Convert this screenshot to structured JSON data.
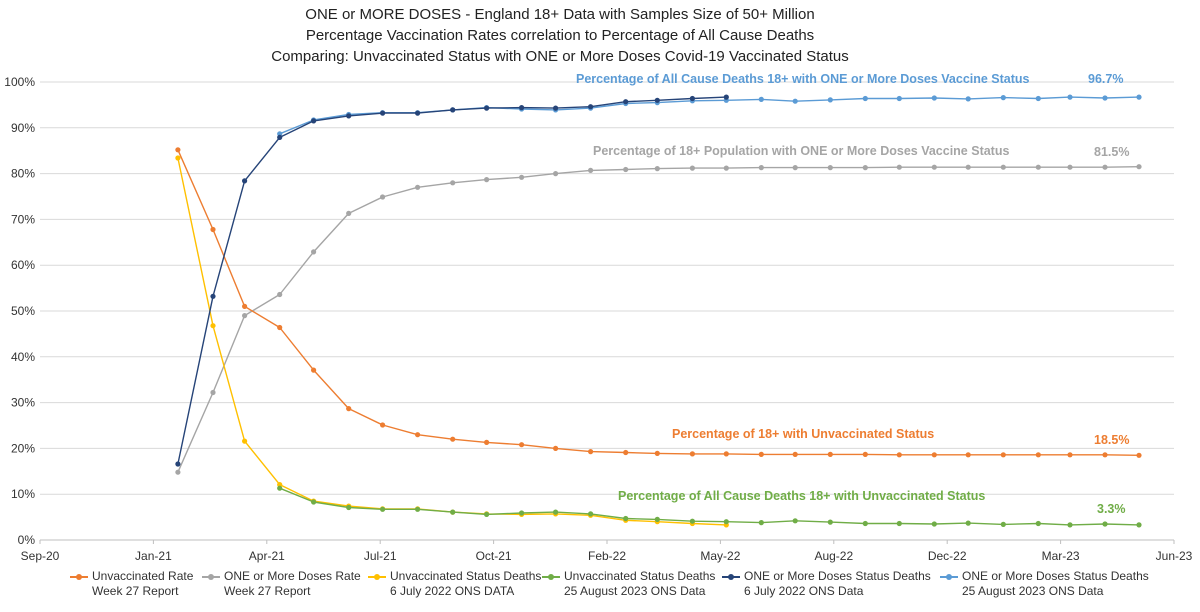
{
  "title": {
    "line1": "ONE or MORE DOSES - England 18+ Data with Samples Size of 50+ Million",
    "line2": "Percentage Vaccination Rates correlation to Percentage of All Cause Deaths",
    "line3": "Comparing: Unvaccinated Status with ONE or More Doses Covid-19 Vaccinated Status"
  },
  "chart_data": {
    "type": "line",
    "x_axis_ticks": [
      "Sep-20",
      "Jan-21",
      "Apr-21",
      "Jul-21",
      "Oct-21",
      "Feb-22",
      "May-22",
      "Aug-22",
      "Dec-22",
      "Mar-23",
      "Jun-23"
    ],
    "y_axis_ticks": [
      "0%",
      "10%",
      "20%",
      "30%",
      "40%",
      "50%",
      "60%",
      "70%",
      "80%",
      "90%",
      "100%"
    ],
    "ylim": [
      0,
      100
    ],
    "grid": "horizontal",
    "legend_position": "bottom",
    "series": [
      {
        "name": "Unvaccinated Rate",
        "name2": "Week 27 Report",
        "color": "#ED7D31",
        "x": [
          "2021-01-01",
          "2021-02-01",
          "2021-03-01",
          "2021-04-01",
          "2021-05-01",
          "2021-06-01",
          "2021-07-01",
          "2021-08-01",
          "2021-09-01",
          "2021-10-01",
          "2021-11-01",
          "2021-12-01",
          "2022-01-01",
          "2022-02-01",
          "2022-03-01",
          "2022-04-01",
          "2022-05-01",
          "2022-06-01",
          "2022-07-01",
          "2022-08-01",
          "2022-09-01",
          "2022-10-01",
          "2022-11-01",
          "2022-12-01",
          "2023-01-01",
          "2023-02-01",
          "2023-03-01",
          "2023-04-01",
          "2023-05-01"
        ],
        "values": [
          85.2,
          67.8,
          51.0,
          46.4,
          37.1,
          28.7,
          25.1,
          23.0,
          22.0,
          21.3,
          20.8,
          20.0,
          19.3,
          19.1,
          18.9,
          18.8,
          18.8,
          18.7,
          18.7,
          18.7,
          18.7,
          18.6,
          18.6,
          18.6,
          18.6,
          18.6,
          18.6,
          18.6,
          18.5
        ]
      },
      {
        "name": "ONE or More Doses Rate",
        "name2": "Week 27 Report",
        "color": "#A5A5A5",
        "x": [
          "2021-01-01",
          "2021-02-01",
          "2021-03-01",
          "2021-04-01",
          "2021-05-01",
          "2021-06-01",
          "2021-07-01",
          "2021-08-01",
          "2021-09-01",
          "2021-10-01",
          "2021-11-01",
          "2021-12-01",
          "2022-01-01",
          "2022-02-01",
          "2022-03-01",
          "2022-04-01",
          "2022-05-01",
          "2022-06-01",
          "2022-07-01",
          "2022-08-01",
          "2022-09-01",
          "2022-10-01",
          "2022-11-01",
          "2022-12-01",
          "2023-01-01",
          "2023-02-01",
          "2023-03-01",
          "2023-04-01",
          "2023-05-01"
        ],
        "values": [
          14.8,
          32.2,
          49.0,
          53.6,
          62.9,
          71.3,
          74.9,
          77.0,
          78.0,
          78.7,
          79.2,
          80.0,
          80.7,
          80.9,
          81.1,
          81.2,
          81.2,
          81.3,
          81.3,
          81.3,
          81.3,
          81.4,
          81.4,
          81.4,
          81.4,
          81.4,
          81.4,
          81.4,
          81.5
        ]
      },
      {
        "name": "Unvaccinated Status Deaths",
        "name2": "6 July 2022 ONS DATA",
        "color": "#FFC000",
        "x": [
          "2021-01-01",
          "2021-02-01",
          "2021-03-01",
          "2021-04-01",
          "2021-05-01",
          "2021-06-01",
          "2021-07-01",
          "2021-08-01",
          "2021-09-01",
          "2021-10-01",
          "2021-11-01",
          "2021-12-01",
          "2022-01-01",
          "2022-02-01",
          "2022-03-01",
          "2022-04-01",
          "2022-05-01"
        ],
        "values": [
          83.4,
          46.8,
          21.6,
          12.1,
          8.5,
          7.4,
          6.8,
          6.8,
          6.1,
          5.7,
          5.6,
          5.7,
          5.4,
          4.3,
          4.0,
          3.6,
          3.3
        ]
      },
      {
        "name": "Unvaccinated Status Deaths",
        "name2": "25 August 2023 ONS Data",
        "color": "#70AD47",
        "x": [
          "2021-04-01",
          "2021-05-01",
          "2021-06-01",
          "2021-07-01",
          "2021-08-01",
          "2021-09-01",
          "2021-10-01",
          "2021-11-01",
          "2021-12-01",
          "2022-01-01",
          "2022-02-01",
          "2022-03-01",
          "2022-04-01",
          "2022-05-01",
          "2022-06-01",
          "2022-07-01",
          "2022-08-01",
          "2022-09-01",
          "2022-10-01",
          "2022-11-01",
          "2022-12-01",
          "2023-01-01",
          "2023-02-01",
          "2023-03-01",
          "2023-04-01",
          "2023-05-01"
        ],
        "values": [
          11.3,
          8.3,
          7.1,
          6.7,
          6.7,
          6.1,
          5.6,
          5.9,
          6.1,
          5.7,
          4.7,
          4.5,
          4.1,
          4.0,
          3.8,
          4.2,
          3.9,
          3.6,
          3.6,
          3.5,
          3.7,
          3.4,
          3.6,
          3.3,
          3.5,
          3.3
        ]
      },
      {
        "name": "ONE or More Doses Status Deaths",
        "name2": "6 July 2022 ONS Data",
        "color": "#264478",
        "x": [
          "2021-01-01",
          "2021-02-01",
          "2021-03-01",
          "2021-04-01",
          "2021-05-01",
          "2021-06-01",
          "2021-07-01",
          "2021-08-01",
          "2021-09-01",
          "2021-10-01",
          "2021-11-01",
          "2021-12-01",
          "2022-01-01",
          "2022-02-01",
          "2022-03-01",
          "2022-04-01",
          "2022-05-01"
        ],
        "values": [
          16.6,
          53.2,
          78.4,
          87.9,
          91.5,
          92.6,
          93.2,
          93.2,
          93.9,
          94.3,
          94.4,
          94.3,
          94.6,
          95.7,
          96.0,
          96.4,
          96.7
        ]
      },
      {
        "name": "ONE or More Doses Status Deaths",
        "name2": "25 August 2023 ONS Data",
        "color": "#5B9BD5",
        "x": [
          "2021-04-01",
          "2021-05-01",
          "2021-06-01",
          "2021-07-01",
          "2021-08-01",
          "2021-09-01",
          "2021-10-01",
          "2021-11-01",
          "2021-12-01",
          "2022-01-01",
          "2022-02-01",
          "2022-03-01",
          "2022-04-01",
          "2022-05-01",
          "2022-06-01",
          "2022-07-01",
          "2022-08-01",
          "2022-09-01",
          "2022-10-01",
          "2022-11-01",
          "2022-12-01",
          "2023-01-01",
          "2023-02-01",
          "2023-03-01",
          "2023-04-01",
          "2023-05-01"
        ],
        "values": [
          88.7,
          91.7,
          92.9,
          93.3,
          93.3,
          93.9,
          94.4,
          94.1,
          93.9,
          94.3,
          95.3,
          95.5,
          95.9,
          96.0,
          96.2,
          95.8,
          96.1,
          96.4,
          96.4,
          96.5,
          96.3,
          96.6,
          96.4,
          96.7,
          96.5,
          96.7
        ]
      }
    ],
    "annotations": [
      {
        "text": "Percentage of All Cause Deaths 18+ with ONE or More Doses Vaccine Status",
        "color": "#5B9BD5"
      },
      {
        "text": "96.7%",
        "color": "#5B9BD5"
      },
      {
        "text": "Percentage of 18+ Population  with ONE or More Doses Vaccine Status",
        "color": "#A5A5A5"
      },
      {
        "text": "81.5%",
        "color": "#A5A5A5"
      },
      {
        "text": "Percentage of 18+ with Unvaccinated Status",
        "color": "#ED7D31"
      },
      {
        "text": "18.5%",
        "color": "#ED7D31"
      },
      {
        "text": "Percentage of All Cause Deaths 18+ with Unvaccinated Status",
        "color": "#70AD47"
      },
      {
        "text": "3.3%",
        "color": "#70AD47"
      }
    ]
  }
}
